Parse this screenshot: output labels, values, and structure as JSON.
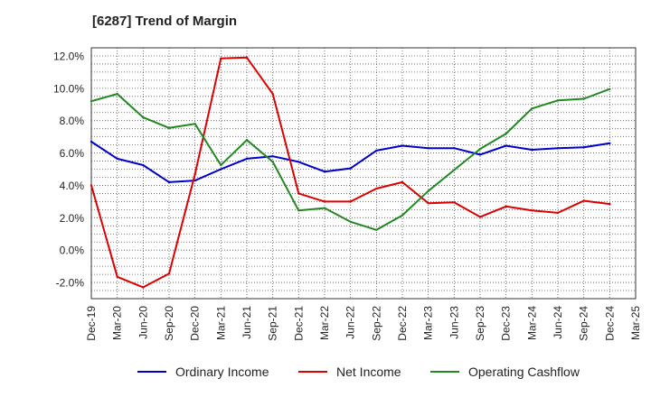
{
  "title": "[6287]  Trend of Margin",
  "colors": {
    "ordinary": "#0000cc",
    "net": "#dd0000",
    "cashflow": "#228822",
    "grid": "#555555"
  },
  "chart_data": {
    "type": "line",
    "title": "[6287]  Trend of Margin",
    "xlabel": "",
    "ylabel": "",
    "ylim": [
      -3.0,
      12.5
    ],
    "yticks": [
      "12.0%",
      "10.0%",
      "8.0%",
      "6.0%",
      "4.0%",
      "2.0%",
      "0.0%",
      "-2.0%"
    ],
    "ytick_values": [
      12,
      10,
      8,
      6,
      4,
      2,
      0,
      -2
    ],
    "x": [
      "Dec-19",
      "Mar-20",
      "Jun-20",
      "Sep-20",
      "Dec-20",
      "Mar-21",
      "Jun-21",
      "Sep-21",
      "Dec-21",
      "Mar-22",
      "Jun-22",
      "Sep-22",
      "Dec-22",
      "Mar-23",
      "Jun-23",
      "Sep-23",
      "Dec-23",
      "Mar-24",
      "Jun-24",
      "Sep-24",
      "Dec-24",
      "Mar-25"
    ],
    "grid": true,
    "legend_position": "bottom",
    "series": [
      {
        "name": "Ordinary Income",
        "color": "#0000cc",
        "values": [
          6.7,
          5.65,
          5.25,
          4.2,
          4.3,
          5.0,
          5.65,
          5.8,
          5.45,
          4.85,
          5.05,
          6.15,
          6.45,
          6.3,
          6.3,
          5.9,
          6.45,
          6.2,
          6.3,
          6.35,
          6.6,
          null
        ]
      },
      {
        "name": "Net Income",
        "color": "#dd0000",
        "values": [
          4.0,
          -1.65,
          -2.3,
          -1.45,
          4.7,
          11.85,
          11.9,
          9.65,
          3.5,
          3.0,
          3.0,
          3.8,
          4.2,
          2.9,
          2.95,
          2.05,
          2.7,
          2.45,
          2.3,
          3.05,
          2.85,
          null
        ]
      },
      {
        "name": "Operating Cashflow",
        "color": "#228822",
        "values": [
          9.2,
          9.65,
          8.2,
          7.55,
          7.8,
          5.25,
          6.8,
          5.45,
          2.45,
          2.6,
          1.75,
          1.25,
          2.15,
          3.65,
          4.95,
          6.25,
          7.2,
          8.75,
          9.25,
          9.35,
          9.95,
          null
        ]
      }
    ]
  }
}
